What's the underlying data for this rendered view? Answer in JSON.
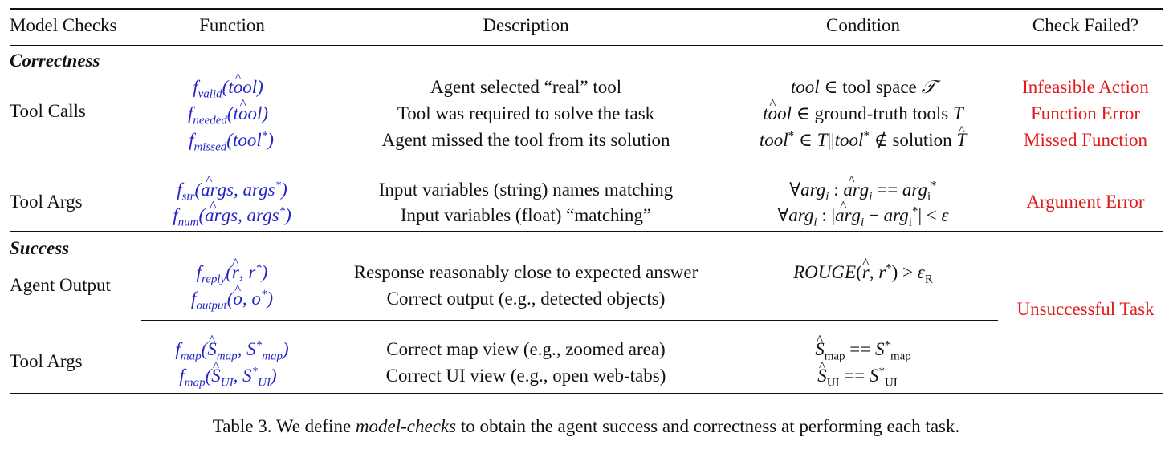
{
  "headers": [
    "Model Checks",
    "Function",
    "Description",
    "Condition",
    "Check Failed?"
  ],
  "sections": {
    "correctness": "Correctness",
    "success": "Success"
  },
  "rows": {
    "tool_calls": {
      "label": "Tool Calls",
      "descriptions": [
        "Agent selected “real” tool",
        "Tool was required to solve the task",
        "Agent missed the tool from its solution"
      ],
      "conditions": [
        "tool ∈ tool space 𝒯",
        "tôol ∈ ground-truth tools T",
        "tool* ∈ T||tool* ∉ solution T̂"
      ],
      "fails": [
        "Infeasible Action",
        "Function Error",
        "Missed Function"
      ]
    },
    "tool_args_1": {
      "label": "Tool Args",
      "descriptions": [
        "Input variables (string) names matching",
        "Input variables (float) “matching”"
      ],
      "conditions": [
        "∀arg_i : ârg_i == arg_i*",
        "∀arg_i : |ârg_i − arg_i*| < ε"
      ],
      "fail": "Argument Error"
    },
    "agent_output": {
      "label": "Agent Output",
      "descriptions": [
        "Response reasonably close to expected answer",
        "Correct output (e.g., detected objects)"
      ],
      "condition": "ROUGE(r̂, r*) > ε_R"
    },
    "tool_args_2": {
      "label": "Tool Args",
      "descriptions": [
        "Correct map view (e.g., zoomed area)",
        "Correct UI view (e.g., open web-tabs)"
      ],
      "conditions": [
        "Ŝ_map == S*_map",
        "Ŝ_UI == S*_UI"
      ]
    },
    "success_fail": "Unsuccessful Task"
  },
  "functions": {
    "valid": "f_valid(tôol)",
    "needed": "f_needed(tôol)",
    "missed": "f_missed(tool*)",
    "str": "f_str(ârgs, args*)",
    "num": "f_num(ârgs, args*)",
    "reply": "f_reply(r̂, r*)",
    "output": "f_output(ô, o*)",
    "map": "f_map(Ŝ_map, S*_map)",
    "ui": "f_map(Ŝ_UI, S*_UI)"
  },
  "caption": {
    "prefix": "Table 3. We define ",
    "emph": "model-checks",
    "suffix": " to obtain the agent success and correctness at performing each task."
  },
  "colors": {
    "function_blue": "#2323c8",
    "fail_red": "#e01a1a"
  }
}
